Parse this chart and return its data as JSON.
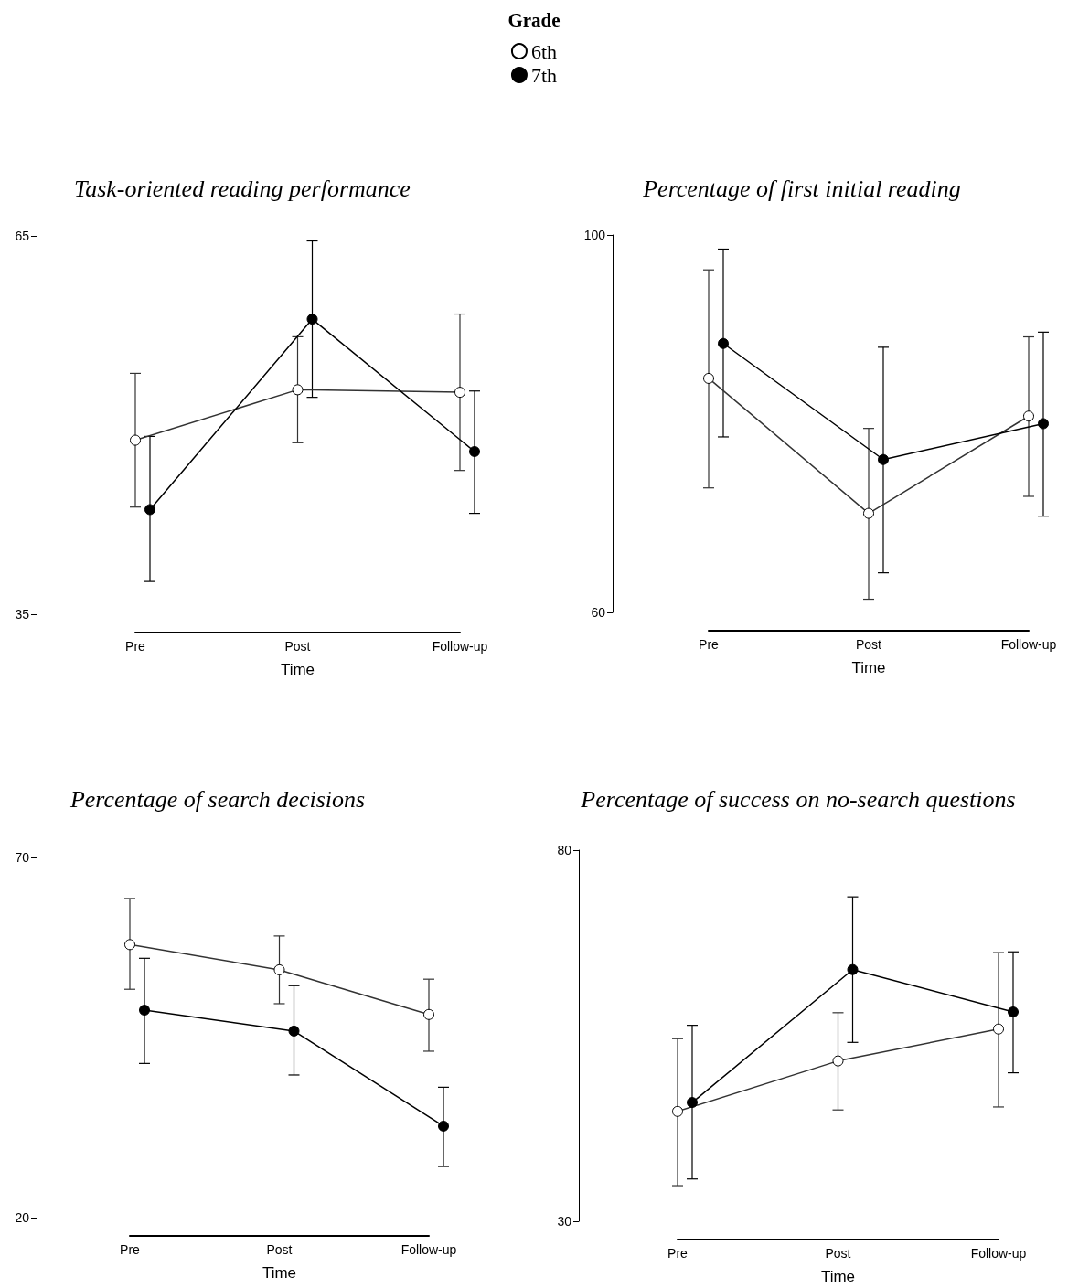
{
  "chart_data": [
    {
      "type": "line",
      "title": "Task-oriented reading performance",
      "xlabel": "Time",
      "categories": [
        "Pre",
        "Post",
        "Follow-up"
      ],
      "legend": "top",
      "legend_title": "Grade",
      "marker": "circle",
      "ylim": [
        35,
        65
      ],
      "yticks": [
        35,
        65
      ],
      "series": [
        {
          "name": "6th",
          "color": "#ffffff",
          "values": [
            48.8,
            52.8,
            52.6
          ],
          "errors": [
            [
              43.5,
              54.1
            ],
            [
              48.6,
              57.0
            ],
            [
              46.4,
              58.8
            ]
          ]
        },
        {
          "name": "7th",
          "color": "#000000",
          "values": [
            43.3,
            58.4,
            47.9
          ],
          "errors": [
            [
              37.6,
              49.1
            ],
            [
              52.2,
              64.6
            ],
            [
              43.0,
              52.7
            ]
          ]
        }
      ]
    },
    {
      "type": "line",
      "title": "Percentage of first initial reading",
      "xlabel": "Time",
      "categories": [
        "Pre",
        "Post",
        "Follow-up"
      ],
      "marker": "circle",
      "ylim": [
        60,
        100
      ],
      "yticks": [
        60,
        100
      ],
      "series": [
        {
          "name": "6th",
          "color": "#ffffff",
          "values": [
            84.8,
            70.5,
            80.8
          ],
          "errors": [
            [
              73.2,
              96.3
            ],
            [
              61.4,
              79.5
            ],
            [
              72.3,
              89.2
            ]
          ]
        },
        {
          "name": "7th",
          "color": "#000000",
          "values": [
            88.5,
            76.2,
            80.0
          ],
          "errors": [
            [
              78.6,
              98.5
            ],
            [
              64.2,
              88.1
            ],
            [
              70.2,
              89.7
            ]
          ]
        }
      ]
    },
    {
      "type": "line",
      "title": "Percentage of search decisions",
      "xlabel": "Time",
      "categories": [
        "Pre",
        "Post",
        "Follow-up"
      ],
      "marker": "circle",
      "ylim": [
        20,
        70
      ],
      "yticks": [
        20,
        70
      ],
      "series": [
        {
          "name": "6th",
          "color": "#ffffff",
          "values": [
            57.9,
            54.4,
            48.2
          ],
          "errors": [
            [
              51.7,
              64.3
            ],
            [
              49.7,
              59.1
            ],
            [
              43.1,
              53.1
            ]
          ]
        },
        {
          "name": "7th",
          "color": "#000000",
          "values": [
            48.8,
            45.9,
            32.7
          ],
          "errors": [
            [
              41.4,
              56.0
            ],
            [
              39.8,
              52.2
            ],
            [
              27.1,
              38.1
            ]
          ]
        }
      ]
    },
    {
      "type": "line",
      "title": "Percentage of success on no-search questions",
      "xlabel": "Time",
      "categories": [
        "Pre",
        "Post",
        "Follow-up"
      ],
      "marker": "circle",
      "ylim": [
        30,
        80
      ],
      "yticks": [
        30,
        80
      ],
      "series": [
        {
          "name": "6th",
          "color": "#ffffff",
          "values": [
            44.8,
            51.6,
            55.9
          ],
          "errors": [
            [
              34.8,
              54.6
            ],
            [
              45.0,
              58.1
            ],
            [
              45.4,
              66.2
            ]
          ]
        },
        {
          "name": "7th",
          "color": "#000000",
          "values": [
            46.0,
            63.9,
            58.2
          ],
          "errors": [
            [
              35.7,
              56.4
            ],
            [
              54.1,
              73.7
            ],
            [
              50.0,
              66.3
            ]
          ]
        }
      ]
    }
  ]
}
